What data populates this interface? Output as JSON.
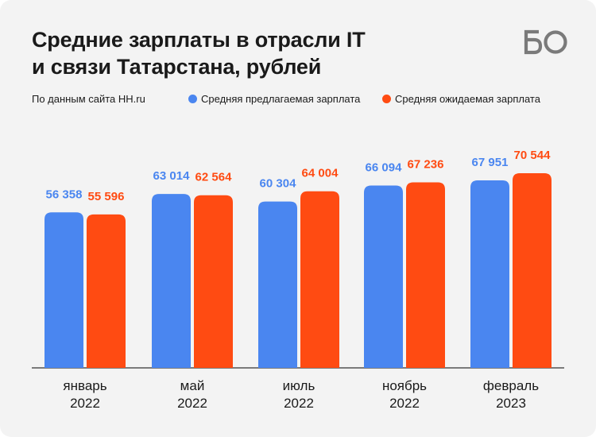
{
  "header": {
    "title_line1": "Средние зарплаты в отрасли IT",
    "title_line2": "и связи Татарстана, рублей",
    "source": "По данным сайта HH.ru",
    "logo_text": "БО"
  },
  "colors": {
    "offered": "#4a86f0",
    "expected": "#ff4b12",
    "text": "#1a1a1a",
    "axis": "#333333",
    "card": "#f3f3f3"
  },
  "chart_data": {
    "type": "bar",
    "categories": [
      [
        "январь",
        "2022"
      ],
      [
        "май",
        "2022"
      ],
      [
        "июль",
        "2022"
      ],
      [
        "ноябрь",
        "2022"
      ],
      [
        "февраль",
        "2023"
      ]
    ],
    "series": [
      {
        "name": "Средняя предлагаемая зарплата",
        "color": "#4a86f0",
        "values": [
          56358,
          63014,
          60304,
          66094,
          67951
        ],
        "labels": [
          "56 358",
          "63 014",
          "60 304",
          "66 094",
          "67 951"
        ]
      },
      {
        "name": "Средняя ожидаемая зарплата",
        "color": "#ff4b12",
        "values": [
          55596,
          62564,
          64004,
          67236,
          70544
        ],
        "labels": [
          "55 596",
          "62 564",
          "64 004",
          "67 236",
          "70 544"
        ]
      }
    ],
    "ylim": [
      0,
      70544
    ],
    "grid": false,
    "legend": "top-right"
  }
}
